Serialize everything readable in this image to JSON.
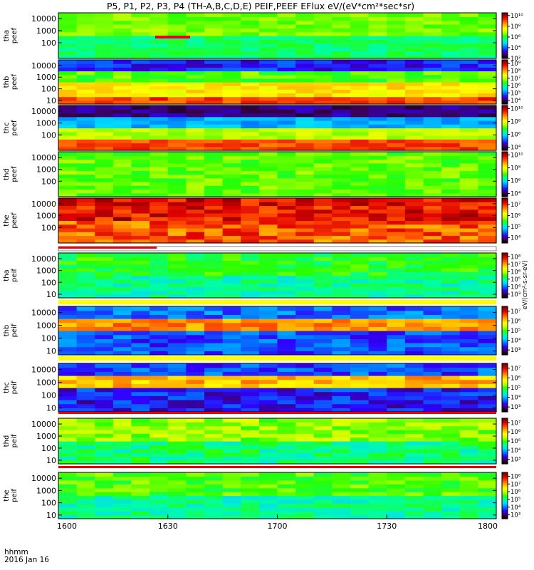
{
  "title": "P5, P1, P2, P3, P4 (TH-A,B,C,D,E) PEIF,PEEF EFlux eV/(eV*cm²*sec*sr)",
  "time_axis": {
    "label": "hhmm",
    "date": "2016 Jan 16",
    "ticks": [
      "1600",
      "1630",
      "1700",
      "1730",
      "1800"
    ]
  },
  "colorbar_unit": "eV/(cm²-s-sr-eV)",
  "colors": {
    "colormap": [
      "#000000",
      "#3c0050",
      "#3000ff",
      "#0078ff",
      "#00d8ff",
      "#00ffa0",
      "#28ff00",
      "#c0ff00",
      "#ffff00",
      "#ffb400",
      "#ff5000",
      "#e00000",
      "#7a0000"
    ],
    "flag_red": "#ee0000",
    "flag_yellow": "#ffff00"
  },
  "chart_data": {
    "type": "heatmap",
    "x_range": [
      "1600",
      "1800"
    ],
    "panels": [
      {
        "probe": "tha",
        "product": "peef",
        "ylabel": "tha\npeef",
        "yticks": [
          "100",
          "1000",
          "10000"
        ],
        "ylim_eV": [
          5,
          30000
        ],
        "log_y": true,
        "colorbar_ticks": [
          "10²",
          "10⁴",
          "10⁶",
          "10⁸",
          "10¹⁰"
        ],
        "cbar_range_log": [
          2,
          10.5
        ],
        "bands": [
          {
            "min_eV": 5,
            "max_eV": 300,
            "log_flux": 5.8
          },
          {
            "min_eV": 300,
            "max_eV": 30000,
            "log_flux": 6.6
          }
        ]
      },
      {
        "probe": "thb",
        "product": "peef",
        "ylabel": "thb\npeef",
        "yticks": [
          "10",
          "100",
          "1000",
          "10000"
        ],
        "ylim_eV": [
          5,
          30000
        ],
        "log_y": true,
        "colorbar_ticks": [
          "10⁴",
          "10⁵",
          "10⁶",
          "10⁷",
          "10⁸",
          "10⁹"
        ],
        "cbar_range_log": [
          3.5,
          9.5
        ],
        "bands": [
          {
            "min_eV": 5,
            "max_eV": 30,
            "log_flux": 8.6
          },
          {
            "min_eV": 30,
            "max_eV": 300,
            "log_flux": 7.6
          },
          {
            "min_eV": 300,
            "max_eV": 3000,
            "log_flux": 6.6
          },
          {
            "min_eV": 3000,
            "max_eV": 30000,
            "log_flux": 4.6
          }
        ]
      },
      {
        "probe": "thc",
        "product": "peef",
        "ylabel": "thc\npeef",
        "yticks": [
          "100",
          "1000",
          "10000"
        ],
        "ylim_eV": [
          5,
          30000
        ],
        "log_y": true,
        "colorbar_ticks": [
          "10⁴",
          "10⁶",
          "10⁸",
          "10¹⁰"
        ],
        "cbar_range_log": [
          3.5,
          10.5
        ],
        "bands": [
          {
            "min_eV": 5,
            "max_eV": 40,
            "log_flux": 9.4
          },
          {
            "min_eV": 40,
            "max_eV": 400,
            "log_flux": 7.6
          },
          {
            "min_eV": 400,
            "max_eV": 4000,
            "log_flux": 5.6
          },
          {
            "min_eV": 4000,
            "max_eV": 30000,
            "log_flux": 4.2
          }
        ]
      },
      {
        "probe": "thd",
        "product": "peef",
        "ylabel": "thd\npeef",
        "yticks": [
          "100",
          "1000",
          "10000"
        ],
        "ylim_eV": [
          5,
          30000
        ],
        "log_y": true,
        "colorbar_ticks": [
          "10⁴",
          "10⁶",
          "10⁸",
          "10¹⁰"
        ],
        "cbar_range_log": [
          3.5,
          10.5
        ],
        "bands": [
          {
            "min_eV": 5,
            "max_eV": 30000,
            "log_flux": 7.2
          }
        ]
      },
      {
        "probe": "the",
        "product": "peef",
        "ylabel": "the\npeef",
        "yticks": [
          "100",
          "1000",
          "10000"
        ],
        "ylim_eV": [
          5,
          30000
        ],
        "log_y": true,
        "colorbar_ticks": [
          "10⁴",
          "10⁵",
          "10⁶",
          "10⁷"
        ],
        "cbar_range_log": [
          3.5,
          7.6
        ],
        "bands": [
          {
            "min_eV": 5,
            "max_eV": 300,
            "log_flux": 6.9
          },
          {
            "min_eV": 300,
            "max_eV": 30000,
            "log_flux": 7.2
          }
        ]
      },
      {
        "probe": "tha",
        "product": "peif",
        "ylabel": "tha\npeif",
        "yticks": [
          "10",
          "100",
          "1000",
          "10000"
        ],
        "ylim_eV": [
          5,
          30000
        ],
        "log_y": true,
        "colorbar_ticks": [
          "10³",
          "10⁴",
          "10⁵",
          "10⁶",
          "10⁷",
          "10⁸"
        ],
        "cbar_range_log": [
          2.5,
          8.5
        ],
        "bands": [
          {
            "min_eV": 5,
            "max_eV": 300,
            "log_flux": 5.0
          },
          {
            "min_eV": 300,
            "max_eV": 30000,
            "log_flux": 5.4
          }
        ]
      },
      {
        "probe": "thb",
        "product": "peif",
        "ylabel": "thb\npeif",
        "yticks": [
          "10",
          "100",
          "1000",
          "10000"
        ],
        "ylim_eV": [
          5,
          30000
        ],
        "log_y": true,
        "colorbar_ticks": [
          "10³",
          "10⁴",
          "10⁵",
          "10⁶",
          "10⁷"
        ],
        "cbar_range_log": [
          2.5,
          7.5
        ],
        "bands": [
          {
            "min_eV": 5,
            "max_eV": 300,
            "log_flux": 3.6
          },
          {
            "min_eV": 300,
            "max_eV": 3000,
            "log_flux": 6.4
          },
          {
            "min_eV": 3000,
            "max_eV": 30000,
            "log_flux": 3.7
          }
        ]
      },
      {
        "probe": "thc",
        "product": "peif",
        "ylabel": "thc\npeif",
        "yticks": [
          "10",
          "100",
          "1000",
          "10000"
        ],
        "ylim_eV": [
          5,
          30000
        ],
        "log_y": true,
        "colorbar_ticks": [
          "10³",
          "10⁴",
          "10⁵",
          "10⁶",
          "10⁷"
        ],
        "cbar_range_log": [
          2.5,
          7.5
        ],
        "bands": [
          {
            "min_eV": 5,
            "max_eV": 300,
            "log_flux": 3.4
          },
          {
            "min_eV": 300,
            "max_eV": 3000,
            "log_flux": 6.2
          },
          {
            "min_eV": 3000,
            "max_eV": 30000,
            "log_flux": 3.6
          }
        ]
      },
      {
        "probe": "thd",
        "product": "peif",
        "ylabel": "thd\npeif",
        "yticks": [
          "10",
          "100",
          "1000",
          "10000"
        ],
        "ylim_eV": [
          5,
          30000
        ],
        "log_y": true,
        "colorbar_ticks": [
          "10³",
          "10⁴",
          "10⁵",
          "10⁶",
          "10⁷"
        ],
        "cbar_range_log": [
          2.5,
          7.5
        ],
        "bands": [
          {
            "min_eV": 5,
            "max_eV": 300,
            "log_flux": 4.7
          },
          {
            "min_eV": 300,
            "max_eV": 30000,
            "log_flux": 5.3
          }
        ]
      },
      {
        "probe": "the",
        "product": "peif",
        "ylabel": "the\npeif",
        "yticks": [
          "10",
          "100",
          "1000",
          "10000"
        ],
        "ylim_eV": [
          5,
          30000
        ],
        "log_y": true,
        "colorbar_ticks": [
          "10³",
          "10⁴",
          "10⁵",
          "10⁶",
          "10⁷",
          "10⁸"
        ],
        "cbar_range_log": [
          2.5,
          8.5
        ],
        "bands": [
          {
            "min_eV": 5,
            "max_eV": 300,
            "log_flux": 5.0
          },
          {
            "min_eV": 300,
            "max_eV": 30000,
            "log_flux": 5.6
          }
        ]
      }
    ]
  }
}
